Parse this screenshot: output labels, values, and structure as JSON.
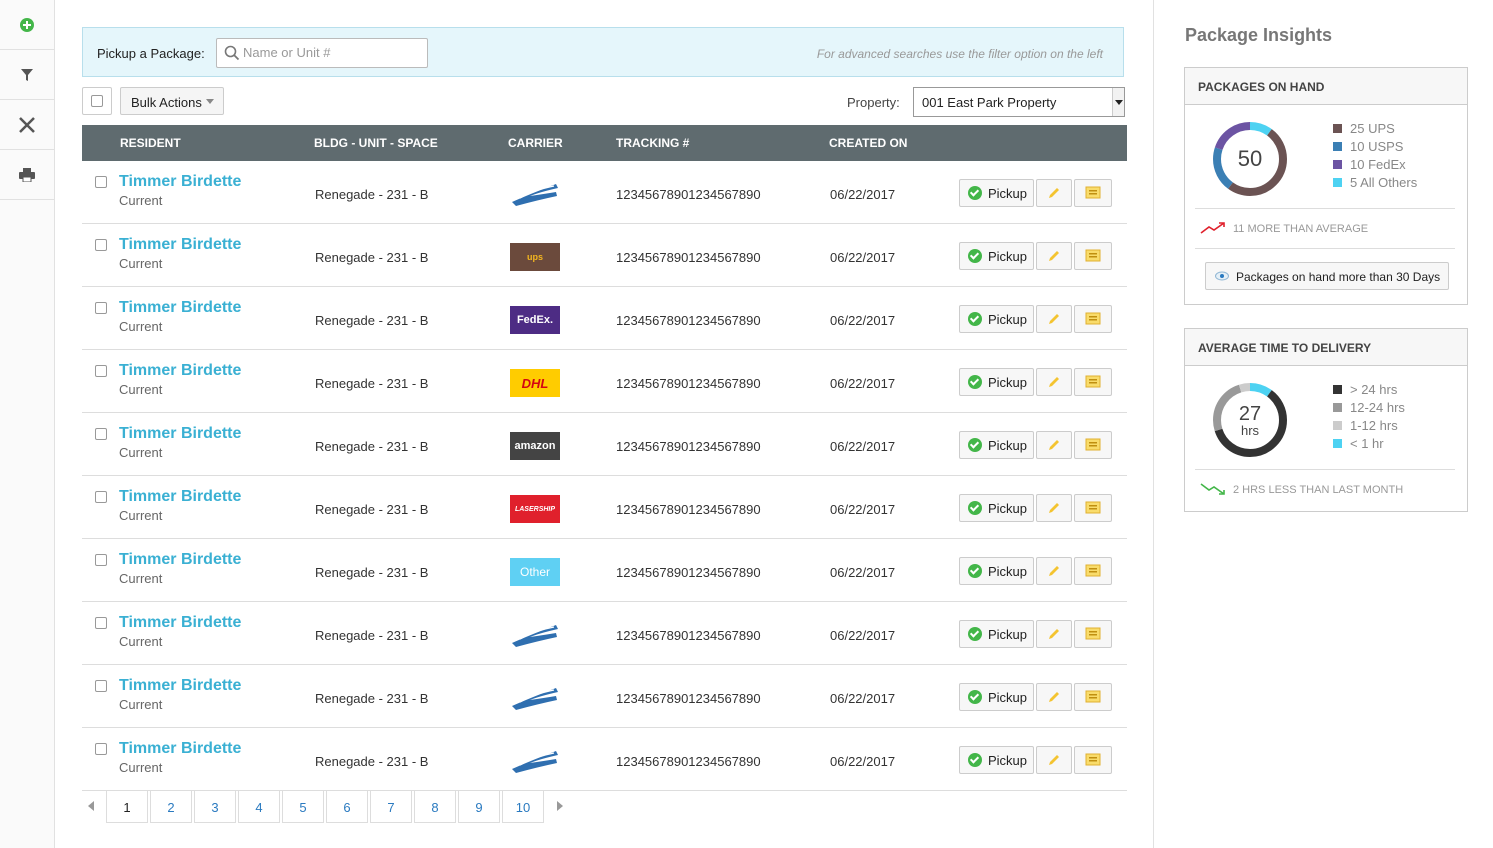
{
  "rail": [
    {
      "name": "add-icon"
    },
    {
      "name": "filter-icon"
    },
    {
      "name": "tools-icon"
    },
    {
      "name": "print-icon"
    }
  ],
  "search": {
    "label": "Pickup a Package:",
    "placeholder": "Name or Unit #",
    "hint": "For advanced searches use the filter option on the left"
  },
  "toolbar": {
    "bulk_label": "Bulk Actions",
    "property_label": "Property:",
    "property_value": "001 East Park Property"
  },
  "table": {
    "headers": [
      "RESIDENT",
      "BLDG - UNIT - SPACE",
      "CARRIER",
      "TRACKING #",
      "CREATED ON"
    ],
    "pickup_label": "Pickup",
    "rows": [
      {
        "name": "Timmer Birdette",
        "status": "Current",
        "bldg": "Renegade - 231 - B",
        "carrier": "usps",
        "carrier_text": "",
        "tracking": "12345678901234567890",
        "date": "06/22/2017"
      },
      {
        "name": "Timmer Birdette",
        "status": "Current",
        "bldg": "Renegade - 231 - B",
        "carrier": "ups",
        "carrier_text": "ups",
        "tracking": "12345678901234567890",
        "date": "06/22/2017"
      },
      {
        "name": "Timmer Birdette",
        "status": "Current",
        "bldg": "Renegade - 231 - B",
        "carrier": "fedex",
        "carrier_text": "FedEx.",
        "tracking": "12345678901234567890",
        "date": "06/22/2017"
      },
      {
        "name": "Timmer Birdette",
        "status": "Current",
        "bldg": "Renegade - 231 - B",
        "carrier": "dhl",
        "carrier_text": "DHL",
        "tracking": "12345678901234567890",
        "date": "06/22/2017"
      },
      {
        "name": "Timmer Birdette",
        "status": "Current",
        "bldg": "Renegade - 231 - B",
        "carrier": "amazon",
        "carrier_text": "amazon",
        "tracking": "12345678901234567890",
        "date": "06/22/2017"
      },
      {
        "name": "Timmer Birdette",
        "status": "Current",
        "bldg": "Renegade - 231 - B",
        "carrier": "lasership",
        "carrier_text": "LASERSHIP",
        "tracking": "12345678901234567890",
        "date": "06/22/2017"
      },
      {
        "name": "Timmer Birdette",
        "status": "Current",
        "bldg": "Renegade - 231 - B",
        "carrier": "other",
        "carrier_text": "Other",
        "tracking": "12345678901234567890",
        "date": "06/22/2017"
      },
      {
        "name": "Timmer Birdette",
        "status": "Current",
        "bldg": "Renegade - 231 - B",
        "carrier": "usps",
        "carrier_text": "",
        "tracking": "12345678901234567890",
        "date": "06/22/2017"
      },
      {
        "name": "Timmer Birdette",
        "status": "Current",
        "bldg": "Renegade - 231 - B",
        "carrier": "usps",
        "carrier_text": "",
        "tracking": "12345678901234567890",
        "date": "06/22/2017"
      },
      {
        "name": "Timmer Birdette",
        "status": "Current",
        "bldg": "Renegade - 231 - B",
        "carrier": "usps",
        "carrier_text": "",
        "tracking": "12345678901234567890",
        "date": "06/22/2017"
      }
    ]
  },
  "carrier_colors": {
    "usps": "#ffffff",
    "ups": "#6b4a3c",
    "fedex": "#4d2c84",
    "dhl": "#ffcc00",
    "amazon": "#444444",
    "lasership": "#e0202c",
    "other": "#5fd0f3"
  },
  "pagination": {
    "current": "1",
    "pages": [
      "1",
      "2",
      "3",
      "4",
      "5",
      "6",
      "7",
      "8",
      "9",
      "10"
    ]
  },
  "insights": {
    "title": "Package Insights",
    "on_hand": {
      "header": "PACKAGES ON HAND",
      "total": "50",
      "legend": [
        {
          "label": "25 UPS",
          "value": 25,
          "color": "#6b5353"
        },
        {
          "label": "10 USPS",
          "value": 10,
          "color": "#3b7fb4"
        },
        {
          "label": "10 FedEx",
          "value": 10,
          "color": "#6c54a3"
        },
        {
          "label": "5 All Others",
          "value": 5,
          "color": "#4dd2f2"
        }
      ],
      "trend": "11 MORE THAN AVERAGE",
      "trend_color": "#e0202c",
      "button": "Packages on hand more than 30 Days"
    },
    "delivery": {
      "header": "AVERAGE TIME TO DELIVERY",
      "value": "27",
      "unit": "hrs",
      "legend": [
        {
          "label": "> 24 hrs",
          "value": 60,
          "color": "#333333"
        },
        {
          "label": "12-24 hrs",
          "value": 25,
          "color": "#999999"
        },
        {
          "label": "1-12 hrs",
          "value": 5,
          "color": "#cccccc"
        },
        {
          "label": "< 1 hr",
          "value": 10,
          "color": "#4dd2f2"
        }
      ],
      "trend": "2 HRS LESS THAN LAST MONTH",
      "trend_color": "#43b649"
    }
  }
}
